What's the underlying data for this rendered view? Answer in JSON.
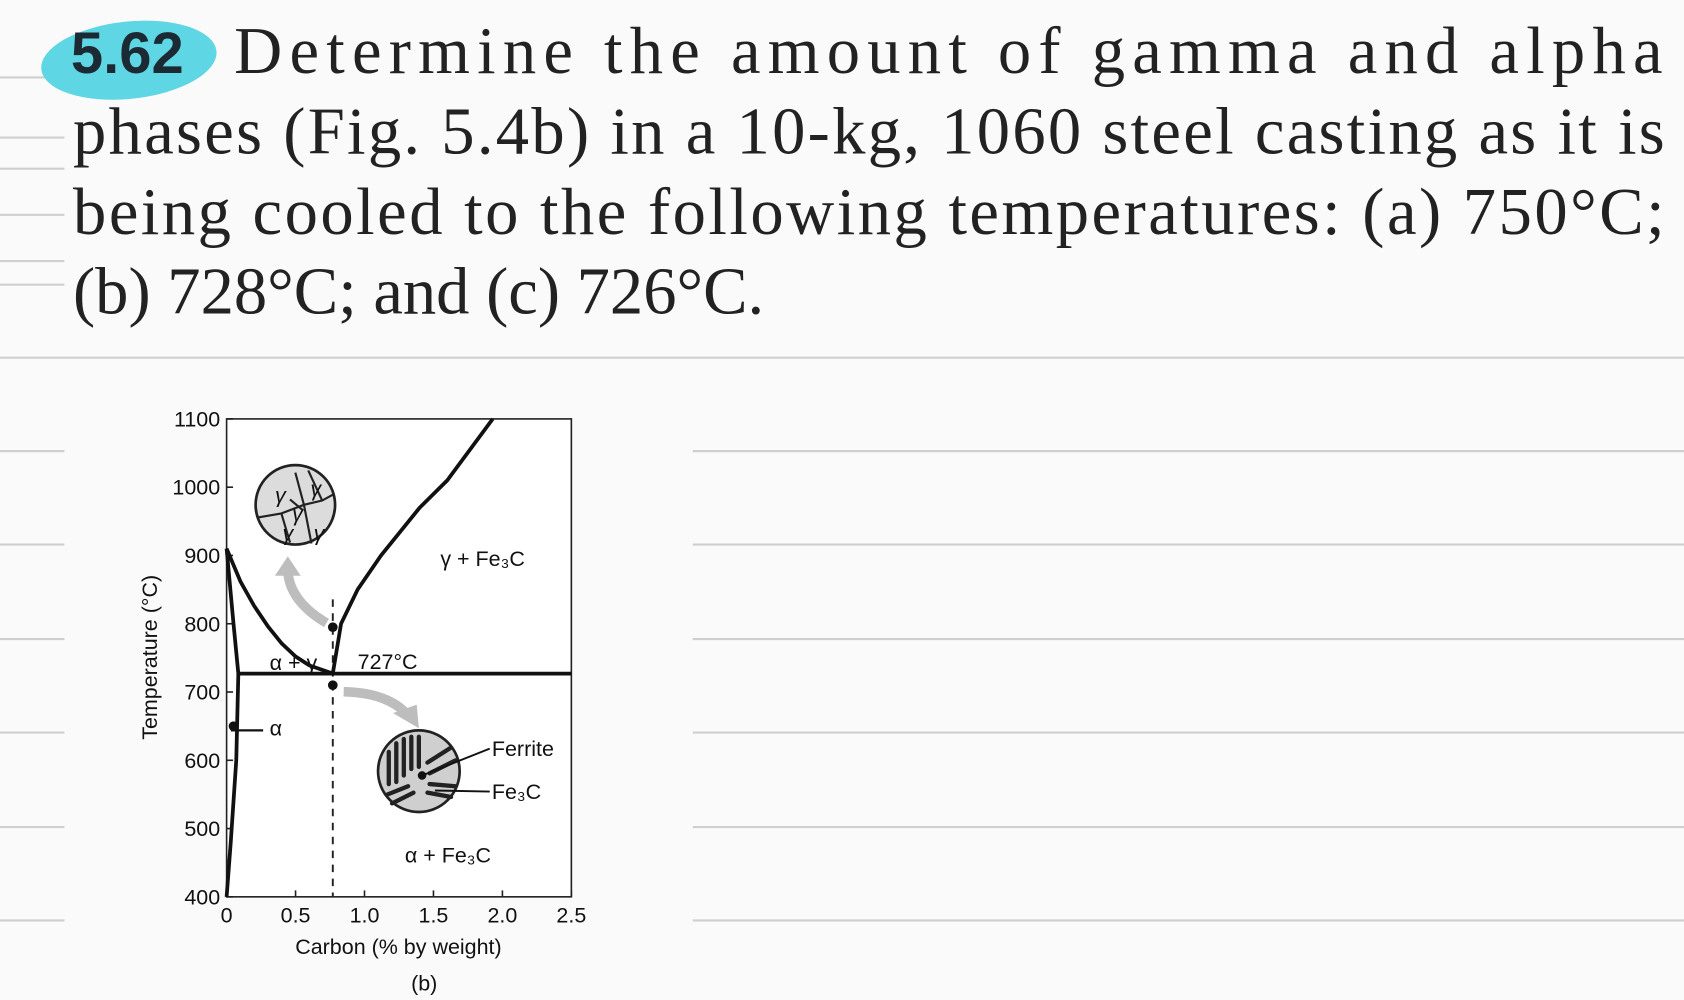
{
  "problem": {
    "number": "5.62",
    "lines": [
      "Determine the amount of gamma and alpha",
      "phases (Fig. 5.4b) in a 10-kg, 1060 steel casting as it is",
      "being cooled to the following temperatures: (a) 750°C;",
      "(b) 728°C; and (c) 726°C."
    ]
  },
  "figure": {
    "type": "line",
    "xlabel": "Carbon (% by weight)",
    "ylabel": "Temperature (°C)",
    "caption": "(b)",
    "xlim": [
      0,
      2.5
    ],
    "ylim": [
      400,
      1100
    ],
    "xticks": [
      0,
      0.5,
      {
        "value": 1,
        "label": "1.0"
      },
      1.5,
      {
        "value": 2,
        "label": "2.0"
      },
      2.5
    ],
    "yticks": [
      400,
      500,
      600,
      700,
      800,
      900,
      1000,
      1100
    ],
    "series": [
      {
        "x": [
          0,
          0.1,
          0.2,
          0.3,
          0.4,
          0.5,
          0.6,
          0.77
        ],
        "values": [
          910,
          862,
          826,
          796,
          771,
          752,
          739,
          727
        ]
      },
      {
        "x": [
          0.77,
          0.83,
          0.95,
          1.12,
          1.4,
          1.6,
          1.93
        ],
        "values": [
          727,
          800,
          850,
          900,
          970,
          1010,
          1100
        ]
      },
      {
        "x": [
          0,
          0.05,
          0.085,
          0.07,
          0.03,
          0
        ],
        "values": [
          910,
          800,
          727,
          600,
          480,
          400
        ]
      },
      {
        "x": [
          0.085,
          2.5
        ],
        "values": [
          727,
          727
        ]
      }
    ],
    "vline_x": 0.77,
    "points": {
      "x": [
        0.77,
        0.77,
        0.05
      ],
      "values": [
        795,
        710,
        650
      ]
    },
    "eutectoid_label": "727°C",
    "regions": [
      "α + γ",
      "γ + Fe₃C",
      "α",
      "α + Fe₃C"
    ],
    "grain_label": "γ",
    "callouts": [
      "Ferrite",
      "Fe₃C"
    ]
  }
}
